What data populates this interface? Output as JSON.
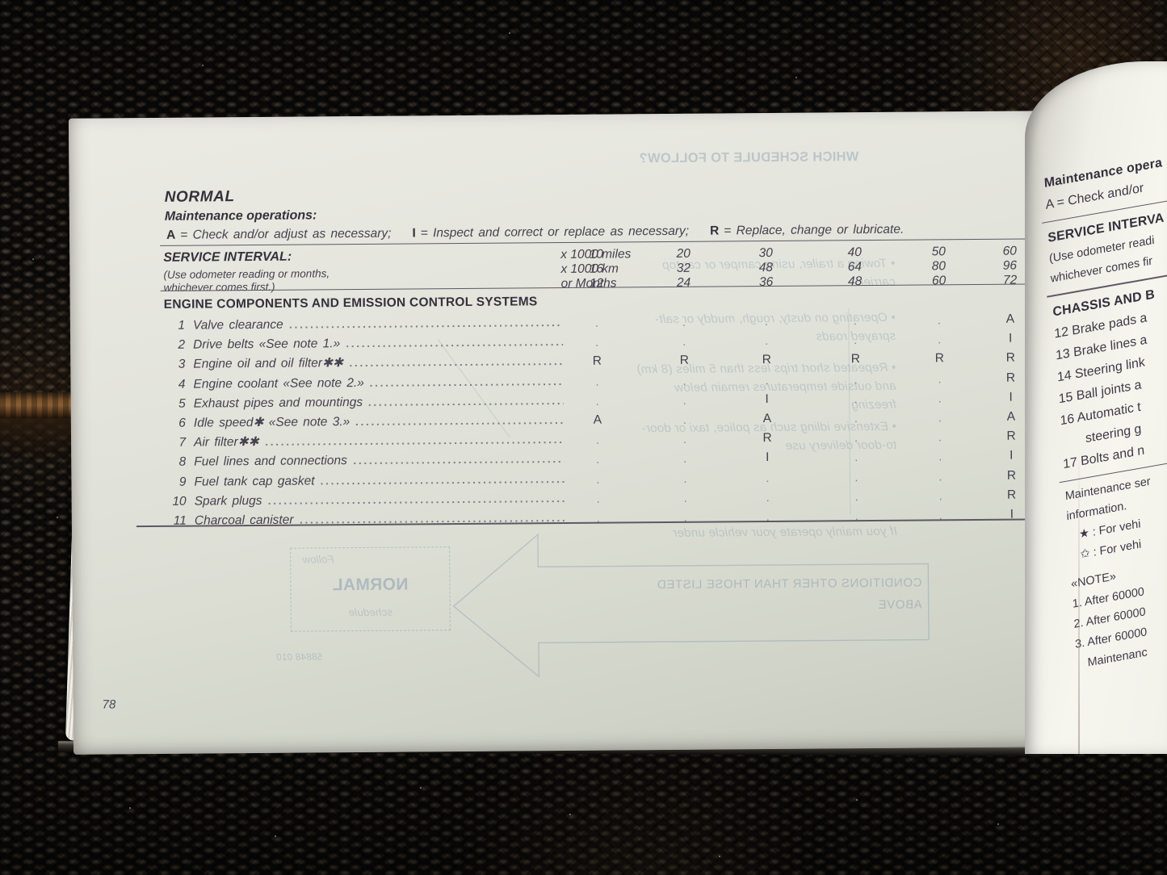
{
  "colors": {
    "page_left": "#e3e4dc",
    "page_right": "#f2f1ea",
    "ink": "#46414e",
    "ghost_print": "#68829e",
    "wood_strip": "#7a532c",
    "mesh_surface": "#0b0a09"
  },
  "left_page": {
    "page_number": "78",
    "title": "NORMAL",
    "operations_heading": "Maintenance operations:",
    "legend": [
      {
        "symbol": "A",
        "text": "=  Check and/or adjust as necessary;"
      },
      {
        "symbol": "I",
        "text": "=  Inspect and correct or replace as necessary;"
      },
      {
        "symbol": "R",
        "text": "=  Replace, change or lubricate."
      }
    ],
    "service_interval": {
      "title": "SERVICE INTERVAL:",
      "subtitle_line1": "(Use odometer reading or months,",
      "subtitle_line2": "whichever comes first.)",
      "rows": [
        {
          "unit": "x 1000 miles",
          "values": [
            "10",
            "20",
            "30",
            "40",
            "50",
            "60"
          ]
        },
        {
          "unit": "x 1000 km",
          "values": [
            "16",
            "32",
            "48",
            "64",
            "80",
            "96"
          ]
        },
        {
          "unit": "or Months",
          "values": [
            "12",
            "24",
            "36",
            "48",
            "60",
            "72"
          ]
        }
      ]
    },
    "section_heading": "ENGINE COMPONENTS AND EMISSION CONTROL SYSTEMS",
    "items": [
      {
        "num": "1",
        "name": "Valve clearance",
        "marks": [
          ".",
          ".",
          ".",
          ".",
          ".",
          "A"
        ]
      },
      {
        "num": "2",
        "name": "Drive belts «See note 1.»",
        "marks": [
          ".",
          ".",
          ".",
          ".",
          ".",
          "I"
        ]
      },
      {
        "num": "3",
        "name": "Engine oil and oil filter✱✱",
        "marks": [
          "R",
          "R",
          "R",
          "R",
          "R",
          "R"
        ]
      },
      {
        "num": "4",
        "name": "Engine coolant «See note 2.»",
        "marks": [
          ".",
          ".",
          ".",
          ".",
          ".",
          "R"
        ]
      },
      {
        "num": "5",
        "name": "Exhaust pipes and mountings",
        "marks": [
          ".",
          ".",
          "I",
          ".",
          ".",
          "I"
        ]
      },
      {
        "num": "6",
        "name": "Idle speed✱ «See note 3.»",
        "marks": [
          "A",
          ".",
          "A",
          ".",
          ".",
          "A"
        ]
      },
      {
        "num": "7",
        "name": "Air filter✱✱",
        "marks": [
          ".",
          ".",
          "R",
          ".",
          ".",
          "R"
        ]
      },
      {
        "num": "8",
        "name": "Fuel lines and connections",
        "marks": [
          ".",
          ".",
          "I",
          ".",
          ".",
          "I"
        ]
      },
      {
        "num": "9",
        "name": "Fuel tank cap gasket",
        "marks": [
          ".",
          ".",
          ".",
          ".",
          ".",
          "R"
        ]
      },
      {
        "num": "10",
        "name": "Spark plugs",
        "marks": [
          ".",
          ".",
          ".",
          ".",
          ".",
          "R"
        ]
      },
      {
        "num": "11",
        "name": "Charcoal canister",
        "marks": [
          ".",
          ".",
          ".",
          ".",
          ".",
          "I"
        ]
      }
    ],
    "show_through": {
      "heading": "WHICH SCHEDULE TO FOLLOW?",
      "bullets": [
        "Towing a trailer, using camper or car top\ncarrier",
        "Operating on dusty, rough, muddy or salt-\nsprayed roads",
        "Repeated short trips less than 5 miles (8 km)\nand outside temperatures remain below\nfreezing",
        "Extensive idling such as police, taxi or door-\nto-door delivery use"
      ],
      "intro_line": "If you mainly operate your vehicle under",
      "arrow_label": "CONDITIONS OTHER THAN THOSE LISTED\nABOVE",
      "box": {
        "line1": "Follow",
        "line2": "NORMAL",
        "line3": "schedule"
      },
      "code": "58848 010"
    }
  },
  "right_page": {
    "lines": [
      {
        "text": "Maintenance opera",
        "bold": true
      },
      {
        "text": "A  =  Check and/or"
      },
      {
        "text": "SERVICE INTERVA",
        "bold": true,
        "rule_before": true
      },
      {
        "text": "(Use odometer readi",
        "small": true
      },
      {
        "text": "whichever comes fir",
        "small": true
      },
      {
        "text": "CHASSIS AND B",
        "bold": true,
        "rule_before": true
      },
      {
        "text": "12  Brake pads a"
      },
      {
        "text": "13  Brake lines a"
      },
      {
        "text": "14  Steering link"
      },
      {
        "text": "15  Ball joints a"
      },
      {
        "text": "16  Automatic t"
      },
      {
        "text": "steering g",
        "indent": 2
      },
      {
        "text": "17  Bolts and n"
      },
      {
        "text": "Maintenance ser",
        "small": true,
        "rule_before": true
      },
      {
        "text": "information.",
        "small": true
      },
      {
        "text": "★ :   For vehi",
        "small": true,
        "indent": 1
      },
      {
        "text": "✩ :   For vehi",
        "small": true,
        "indent": 1
      },
      {
        "text": "«NOTE»",
        "small": true,
        "gap_before": true
      },
      {
        "text": "1. After 60000",
        "small": true
      },
      {
        "text": "2. After 60000",
        "small": true
      },
      {
        "text": "3. After 60000",
        "small": true
      },
      {
        "text": "Maintenanc",
        "small": true,
        "indent": 1
      }
    ]
  }
}
